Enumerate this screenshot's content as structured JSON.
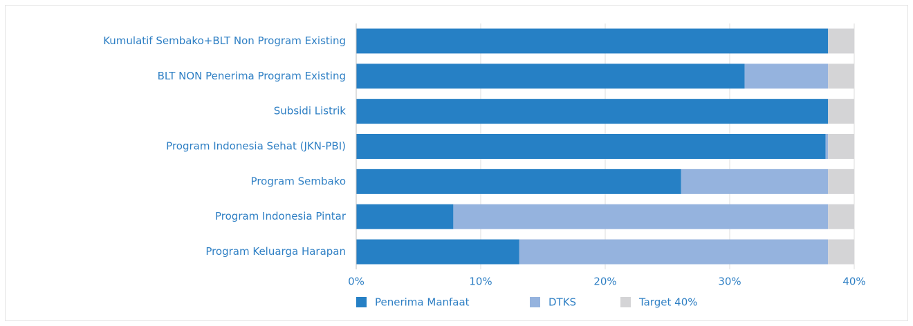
{
  "chart_data": {
    "type": "stacked-barh",
    "categories": [
      "Kumulatif Sembako+BLT Non Program Existing",
      "BLT NON Penerima Program Existing",
      "Subsidi Listrik",
      "Program Indonesia Sehat (JKN-PBI)",
      "Program Sembako",
      "Program Indonesia Pintar",
      "Program Keluarga Harapan"
    ],
    "series": [
      {
        "name": "Penerima Manfaat",
        "color": "#2680c5",
        "values": [
          37.9,
          31.2,
          37.9,
          37.7,
          26.1,
          7.8,
          13.1
        ]
      },
      {
        "name": "DTKS",
        "color": "#95b3de",
        "values": [
          0,
          6.7,
          0,
          0.2,
          11.8,
          30.1,
          24.8
        ]
      },
      {
        "name": "Target 40%",
        "color": "#d4d4d6",
        "values": [
          2.1,
          2.1,
          2.1,
          2.1,
          2.1,
          2.1,
          2.1
        ]
      }
    ],
    "xlim": [
      0,
      40
    ],
    "xticks": [
      {
        "value": 0,
        "label": "0%"
      },
      {
        "value": 10,
        "label": "10%"
      },
      {
        "value": 20,
        "label": "20%"
      },
      {
        "value": 30,
        "label": "30%"
      },
      {
        "value": 40,
        "label": "40%"
      }
    ],
    "grid": true
  }
}
